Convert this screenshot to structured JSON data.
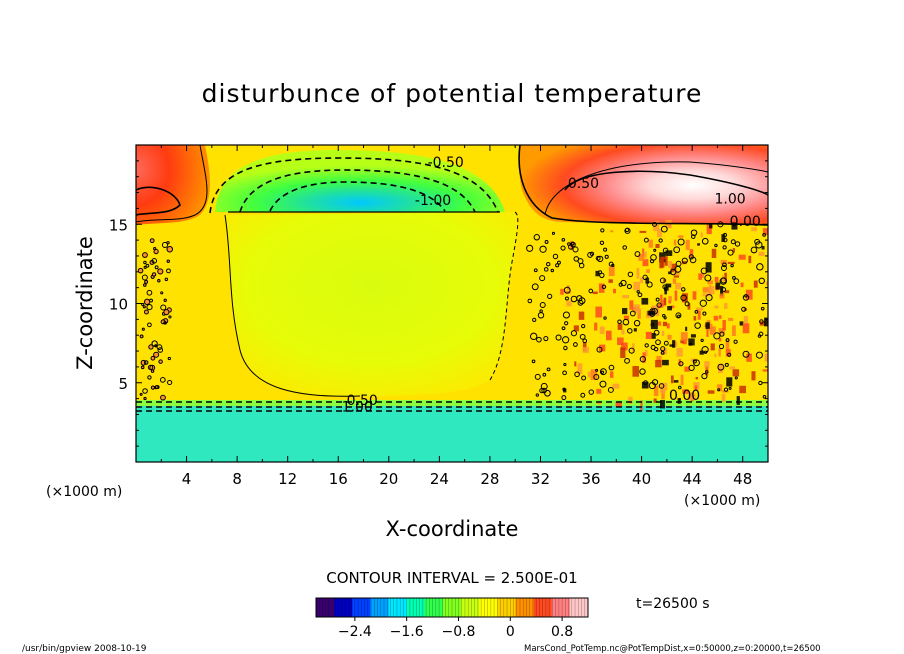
{
  "chart_data": {
    "type": "heatmap",
    "title": "disturbunce of potential temperature",
    "xlabel": "X-coordinate",
    "ylabel": "Z-coordinate",
    "x_unit": "(×1000 m)",
    "y_unit": "(×1000 m)",
    "xlim": [
      0,
      50
    ],
    "ylim": [
      0,
      20
    ],
    "x_ticks": [
      4,
      8,
      12,
      16,
      20,
      24,
      28,
      32,
      36,
      40,
      44,
      48
    ],
    "y_ticks": [
      5,
      10,
      15
    ],
    "contour_interval": "CONTOUR INTERVAL = 2.500E-01",
    "contour_labels": [
      {
        "text": "-0.50",
        "x": 24.5,
        "y": 18.6
      },
      {
        "text": "-1.00",
        "x": 23.5,
        "y": 16.2
      },
      {
        "text": "0.50",
        "x": 35.4,
        "y": 17.3
      },
      {
        "text": "1.00",
        "x": 47.0,
        "y": 16.3
      },
      {
        "text": "0.50",
        "x": 17.9,
        "y": 3.6
      },
      {
        "text": "1.00",
        "x": 17.5,
        "y": 3.2
      },
      {
        "text": "0.00",
        "x": 43.4,
        "y": 3.9
      },
      {
        "text": "0.00",
        "x": 48.2,
        "y": 14.9
      }
    ],
    "colorbar": {
      "ticks": [
        "−2.4",
        "−1.6",
        "−0.8",
        "0",
        "0.8"
      ],
      "tick_values": [
        -2.4,
        -1.6,
        -0.8,
        0,
        0.8
      ],
      "range": [
        -3.0,
        1.2
      ],
      "colors": [
        "#3a0070",
        "#0000c0",
        "#0040ff",
        "#00a0ff",
        "#00e8ff",
        "#00ffb0",
        "#30ff50",
        "#80ff20",
        "#c8ff10",
        "#ffff00",
        "#ffd000",
        "#ff9000",
        "#ff4a20",
        "#ff8080",
        "#ffc8c8"
      ]
    },
    "time_label": "t=26500 s"
  },
  "footer": {
    "left": "/usr/bin/gpview   2008-10-19",
    "right": "MarsCond_PotTemp.nc@PotTempDist,x=0:50000,z=0:20000,t=26500"
  }
}
